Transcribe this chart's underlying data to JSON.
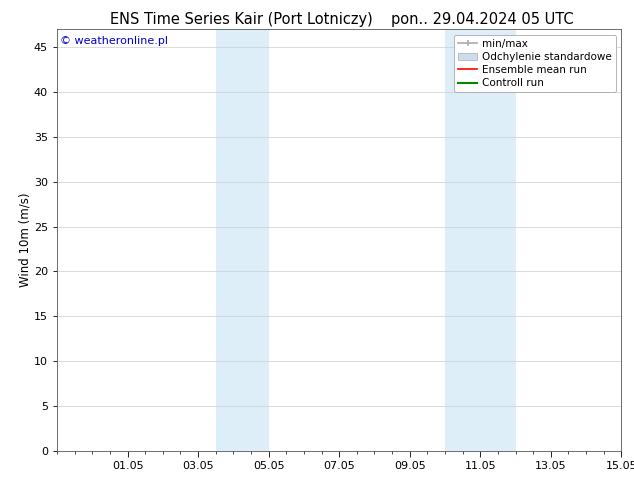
{
  "title_left": "ENS Time Series Kair (Port Lotniczy)",
  "title_right": "pon.. 29.04.2024 05 UTC",
  "ylabel": "Wind 10m (m/s)",
  "watermark": "© weatheronline.pl",
  "watermark_color": "#0000cc",
  "ylim": [
    0,
    47
  ],
  "yticks": [
    0,
    5,
    10,
    15,
    20,
    25,
    30,
    35,
    40,
    45
  ],
  "xlim": [
    0,
    16
  ],
  "xtick_labels": [
    "01.05",
    "03.05",
    "05.05",
    "07.05",
    "09.05",
    "11.05",
    "13.05",
    "15.05"
  ],
  "xtick_positions": [
    2,
    4,
    6,
    8,
    10,
    12,
    14,
    16
  ],
  "shaded_bands": [
    {
      "x_start": 4.5,
      "x_end": 6.0
    },
    {
      "x_start": 11.0,
      "x_end": 13.0
    }
  ],
  "shade_color": "#ddeef8",
  "legend_entries": [
    {
      "label": "min/max",
      "color": "#aaaaaa",
      "lw": 1.2,
      "style": "errorbar"
    },
    {
      "label": "Odchylenie standardowe",
      "color": "#ccddee",
      "lw": 8,
      "style": "thick"
    },
    {
      "label": "Ensemble mean run",
      "color": "#ff0000",
      "lw": 1.2,
      "style": "line"
    },
    {
      "label": "Controll run",
      "color": "#008800",
      "lw": 1.5,
      "style": "line"
    }
  ],
  "bg_color": "#ffffff",
  "plot_bg_color": "#ffffff",
  "grid_color": "#cccccc",
  "tick_label_fontsize": 8,
  "title_fontsize": 10.5,
  "ylabel_fontsize": 8.5,
  "watermark_fontsize": 8,
  "legend_fontsize": 7.5
}
